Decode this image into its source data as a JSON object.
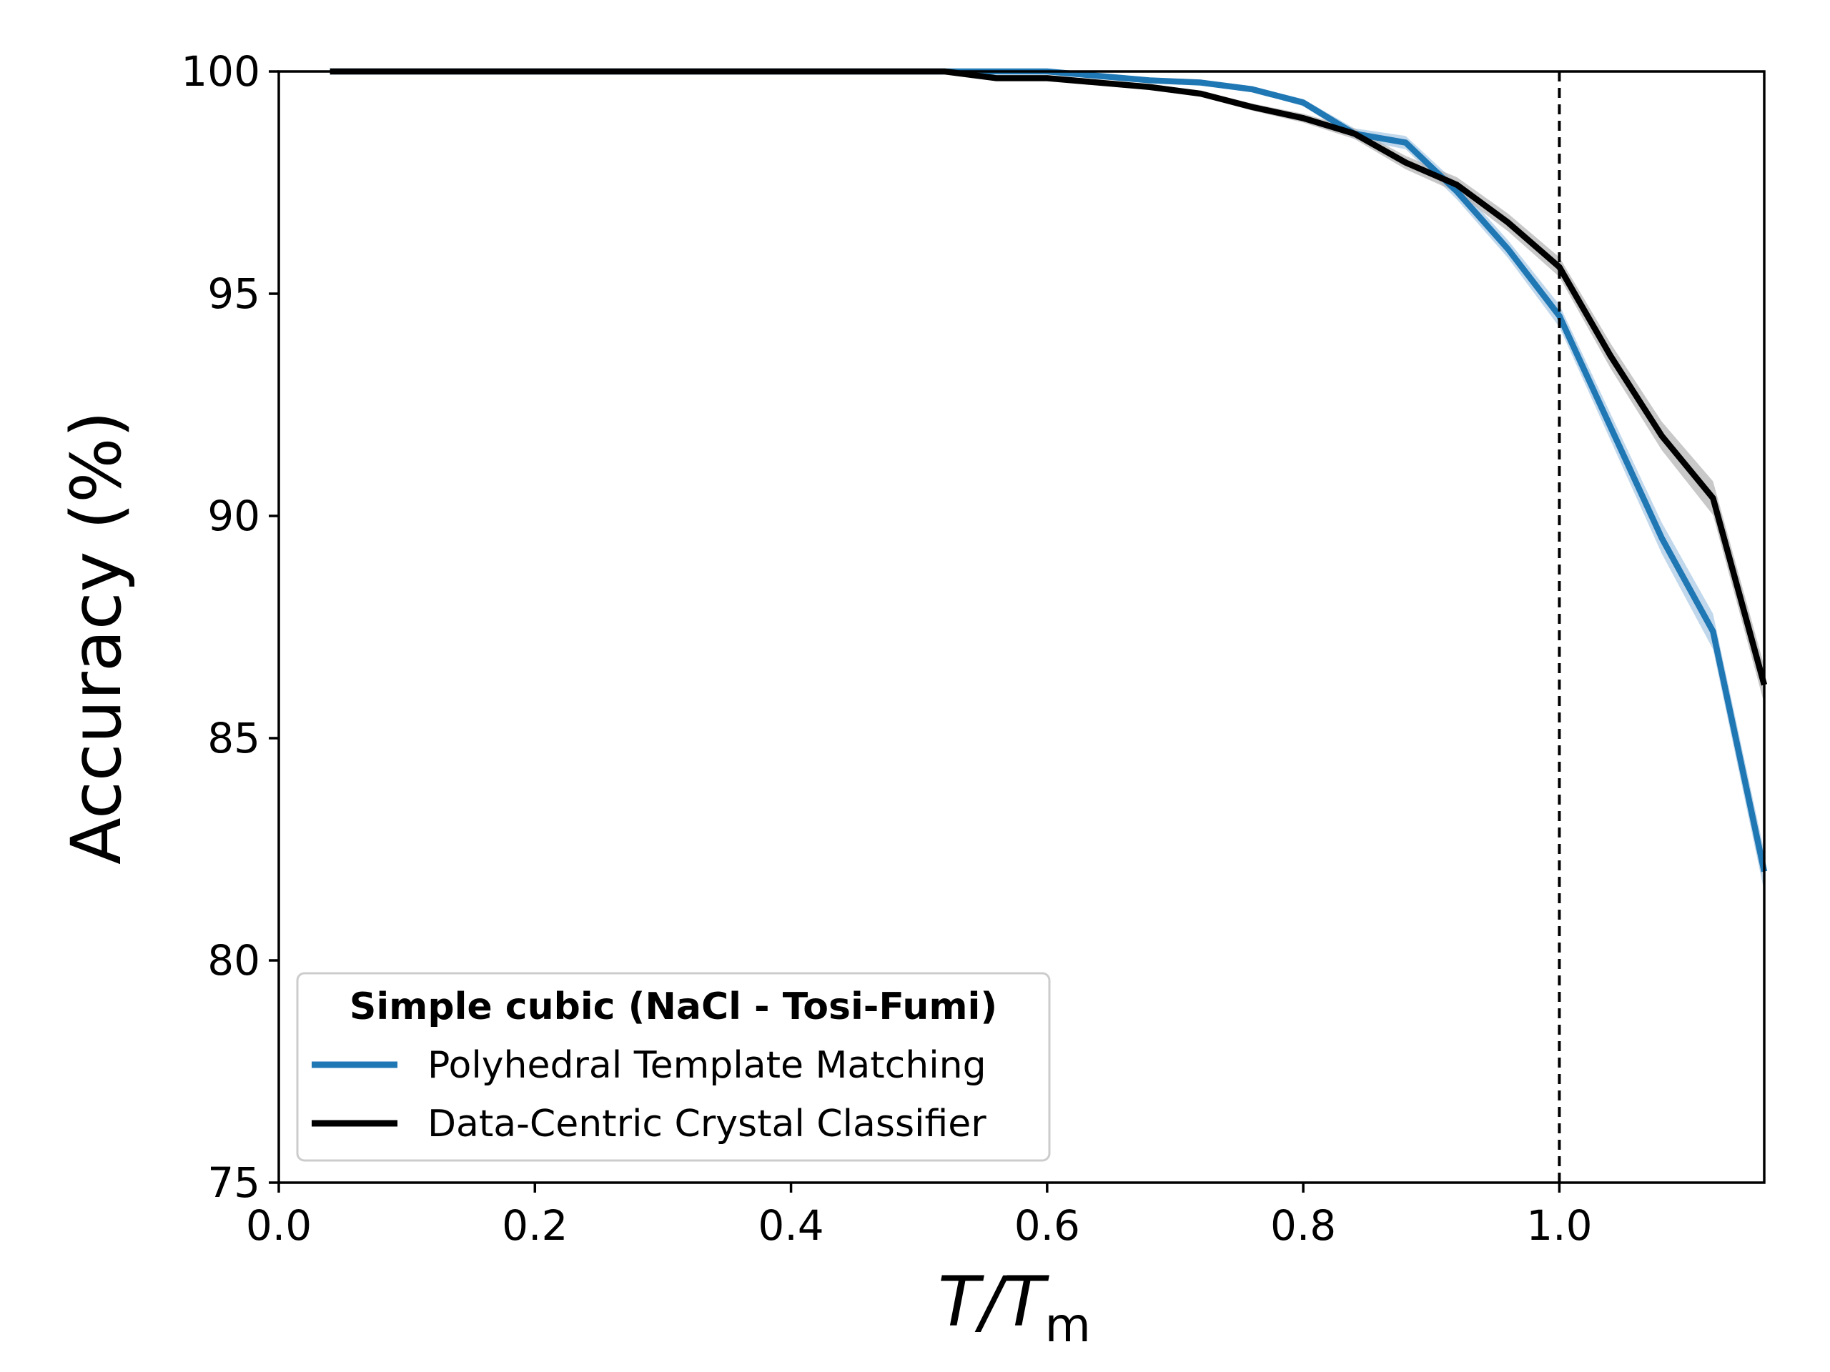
{
  "chart_data": {
    "type": "line",
    "title": "",
    "xlabel_main": "T/T",
    "xlabel_sub": "m",
    "ylabel": "Accuracy (%)",
    "xlim": [
      0.0,
      1.16
    ],
    "ylim": [
      75,
      100
    ],
    "xticks": [
      "0.0",
      "0.2",
      "0.4",
      "0.6",
      "0.8",
      "1.0"
    ],
    "xtick_values": [
      0.0,
      0.2,
      0.4,
      0.6,
      0.8,
      1.0
    ],
    "yticks": [
      "75",
      "80",
      "85",
      "90",
      "95",
      "100"
    ],
    "ytick_values": [
      75,
      80,
      85,
      90,
      95,
      100
    ],
    "grid": false,
    "vline_x": 1.0,
    "legend": {
      "title": "Simple cubic (NaCl - Tosi-Fumi)",
      "placement": "lower-left"
    },
    "x": [
      0.04,
      0.08,
      0.12,
      0.16,
      0.2,
      0.24,
      0.28,
      0.32,
      0.36,
      0.4,
      0.44,
      0.48,
      0.52,
      0.56,
      0.6,
      0.64,
      0.68,
      0.72,
      0.76,
      0.8,
      0.84,
      0.88,
      0.92,
      0.96,
      1.0,
      1.04,
      1.08,
      1.12,
      1.16
    ],
    "series": [
      {
        "name": "Polyhedral Template Matching",
        "color": "#1f77b4",
        "band_color": "#a6c8e4",
        "values": [
          100,
          100,
          100,
          100,
          100,
          100,
          100,
          100,
          100,
          100,
          100,
          100,
          100,
          100,
          100,
          99.9,
          99.8,
          99.75,
          99.6,
          99.3,
          98.6,
          98.4,
          97.3,
          96.0,
          94.5,
          92.0,
          89.5,
          87.4,
          82.0
        ],
        "band": [
          0,
          0,
          0,
          0,
          0,
          0,
          0,
          0,
          0,
          0,
          0,
          0,
          0,
          0,
          0,
          0.03,
          0.04,
          0.05,
          0.06,
          0.08,
          0.12,
          0.15,
          0.18,
          0.2,
          0.25,
          0.3,
          0.35,
          0.4,
          0.45
        ]
      },
      {
        "name": "Data-Centric Crystal Classifier",
        "color": "#000000",
        "band_color": "#b0b0b0",
        "values": [
          100,
          100,
          100,
          100,
          100,
          100,
          100,
          100,
          100,
          100,
          100,
          100,
          100,
          99.85,
          99.85,
          99.75,
          99.65,
          99.5,
          99.2,
          98.95,
          98.6,
          97.95,
          97.45,
          96.6,
          95.6,
          93.6,
          91.8,
          90.4,
          86.2
        ],
        "band": [
          0,
          0,
          0,
          0,
          0,
          0,
          0,
          0,
          0,
          0,
          0,
          0,
          0,
          0.03,
          0.03,
          0.04,
          0.05,
          0.06,
          0.08,
          0.1,
          0.12,
          0.15,
          0.17,
          0.2,
          0.22,
          0.28,
          0.32,
          0.38,
          0.42
        ]
      }
    ]
  }
}
